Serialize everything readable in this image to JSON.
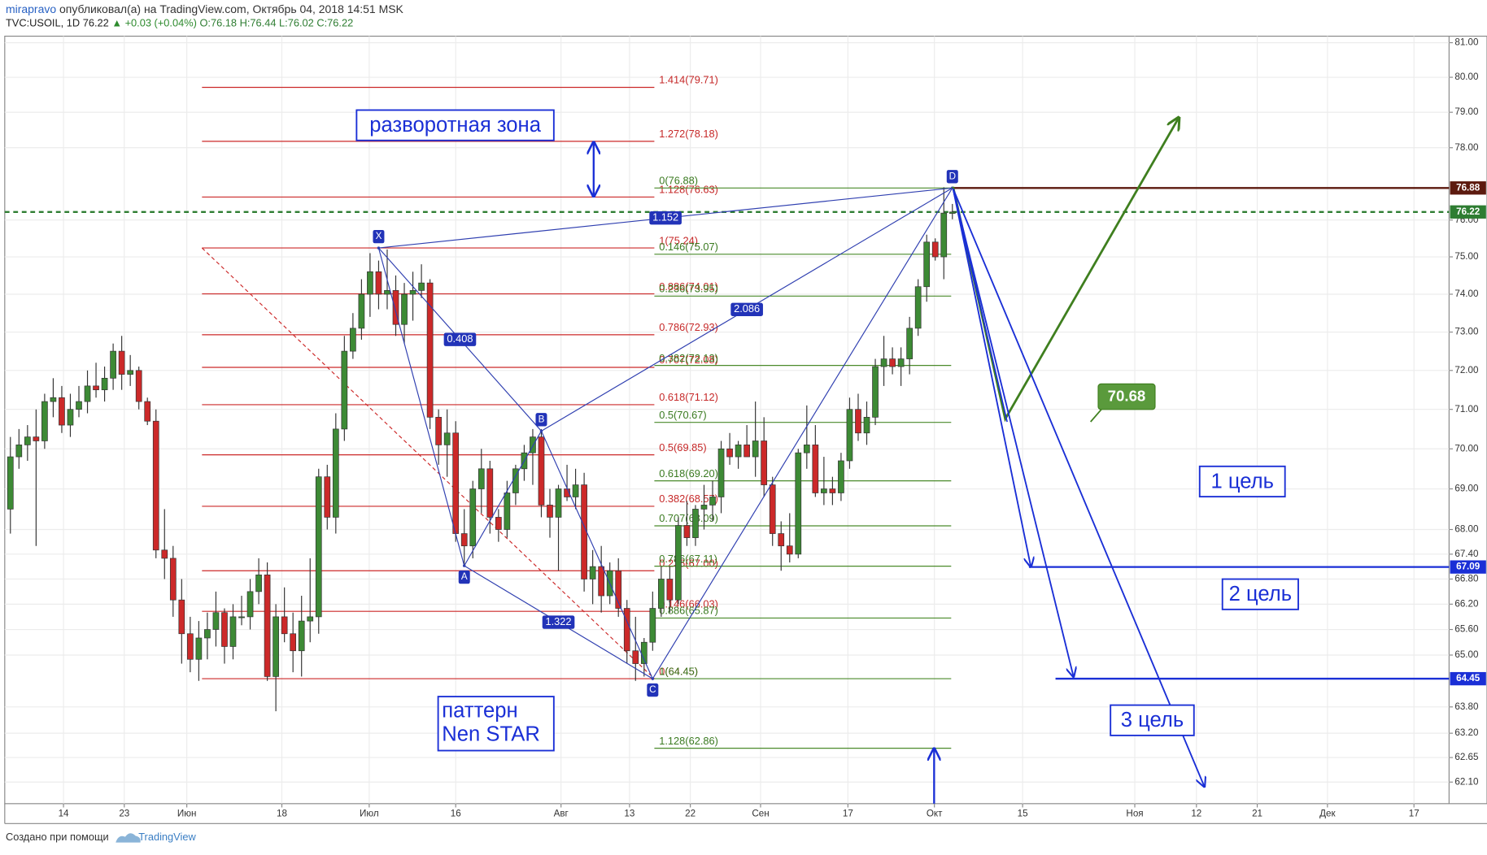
{
  "header": {
    "author": "mirapravo",
    "published": "опубликовал(а) на TradingView.com, Октябрь 04, 2018 14:51 MSK",
    "symbol": "TVC:USOIL, 1D",
    "price": "76.22",
    "change": "▲ +0.03 (+0.04%)",
    "ohlc": "O:76.18 H:76.44 L:76.02 C:76.22"
  },
  "chart_data": {
    "type": "candlestick",
    "log_scale": true,
    "grid": true,
    "up_color": "#3d8a35",
    "down_color": "#cc2929",
    "xlim": [
      -0.66,
      168.0
    ],
    "ylim": [
      61.62,
      81.19
    ],
    "xticks": [
      {
        "value": 6.2,
        "label": "14"
      },
      {
        "value": 13.3,
        "label": "23"
      },
      {
        "value": 20.6,
        "label": "Июн"
      },
      {
        "value": 31.7,
        "label": "18"
      },
      {
        "value": 41.9,
        "label": "Июл"
      },
      {
        "value": 52,
        "label": "16"
      },
      {
        "value": 64.3,
        "label": "Авг"
      },
      {
        "value": 72.3,
        "label": "13"
      },
      {
        "value": 79.4,
        "label": "22"
      },
      {
        "value": 87.6,
        "label": "Сен"
      },
      {
        "value": 97.8,
        "label": "17"
      },
      {
        "value": 107.9,
        "label": "Окт"
      },
      {
        "value": 118.2,
        "label": "15"
      },
      {
        "value": 131.3,
        "label": "Ноя"
      },
      {
        "value": 138.5,
        "label": "12"
      },
      {
        "value": 145.6,
        "label": "21"
      },
      {
        "value": 153.8,
        "label": "Дек"
      },
      {
        "value": 163.9,
        "label": "17"
      }
    ],
    "yticks": [
      {
        "value": 81,
        "label": "81.00"
      },
      {
        "value": 80,
        "label": "80.00"
      },
      {
        "value": 79,
        "label": "79.00"
      },
      {
        "value": 78,
        "label": "78.00"
      },
      {
        "value": 76,
        "label": "76.00"
      },
      {
        "value": 75,
        "label": "75.00"
      },
      {
        "value": 74,
        "label": "74.00"
      },
      {
        "value": 73,
        "label": "73.00"
      },
      {
        "value": 72,
        "label": "72.00"
      },
      {
        "value": 71,
        "label": "71.00"
      },
      {
        "value": 70,
        "label": "70.00"
      },
      {
        "value": 69,
        "label": "69.00"
      },
      {
        "value": 68,
        "label": "68.00"
      },
      {
        "value": 67.4,
        "label": "67.40"
      },
      {
        "value": 66.8,
        "label": "66.80"
      },
      {
        "value": 66.2,
        "label": "66.20"
      },
      {
        "value": 65.6,
        "label": "65.60"
      },
      {
        "value": 65,
        "label": "65.00"
      },
      {
        "value": 63.8,
        "label": "63.80"
      },
      {
        "value": 63.2,
        "label": "63.20"
      },
      {
        "value": 62.65,
        "label": "62.65"
      },
      {
        "value": 62.1,
        "label": "62.10"
      }
    ],
    "open": [
      68.5,
      69.8,
      70.1,
      70.3,
      70.2,
      71.2,
      71.3,
      70.6,
      71.0,
      71.2,
      71.6,
      71.5,
      71.8,
      72.5,
      71.9,
      72.0,
      71.2,
      70.7,
      67.5,
      67.3,
      66.3,
      65.5,
      64.9,
      65.4,
      65.6,
      66.0,
      65.2,
      65.9,
      65.9,
      66.5,
      66.9,
      64.5,
      65.9,
      65.5,
      65.1,
      65.8,
      65.9,
      69.3,
      68.3,
      70.5,
      72.5,
      73.1,
      74.0,
      74.6,
      74.0,
      74.1,
      73.2,
      74.0,
      74.1,
      74.3,
      70.8,
      70.1,
      70.4,
      67.9,
      67.6,
      69.0,
      69.5,
      68.3,
      68.0,
      68.9,
      69.5,
      69.9,
      70.3,
      68.6,
      68.3,
      69.0,
      68.8,
      69.1,
      66.8,
      67.1,
      66.4,
      67.0,
      66.1,
      65.1,
      64.8,
      65.3,
      66.1,
      66.8,
      66.3,
      68.1,
      67.8,
      68.5,
      68.6,
      68.8,
      70.0,
      69.8,
      70.1,
      69.8,
      70.2,
      69.1,
      67.9,
      67.6,
      67.4,
      69.9,
      70.1,
      68.9,
      69.0,
      68.9,
      69.7,
      71.0,
      70.4,
      70.8,
      72.1,
      72.3,
      72.1,
      72.3,
      73.1,
      74.2,
      75.4,
      75.0,
      76.18
    ],
    "high": [
      70.3,
      70.5,
      70.6,
      71.0,
      71.4,
      71.8,
      71.6,
      71.4,
      71.6,
      72.0,
      72.2,
      72.1,
      72.7,
      72.9,
      72.4,
      72.1,
      71.3,
      71.0,
      68.5,
      67.6,
      66.8,
      65.9,
      65.8,
      66.0,
      66.5,
      66.1,
      66.2,
      66.4,
      66.8,
      67.3,
      67.2,
      66.2,
      66.6,
      66.0,
      66.4,
      67.3,
      69.5,
      69.6,
      70.9,
      72.9,
      73.5,
      74.4,
      75.1,
      74.9,
      75.2,
      74.5,
      74.3,
      74.6,
      74.8,
      74.4,
      71.0,
      71.0,
      70.7,
      68.5,
      69.2,
      70.0,
      69.7,
      68.5,
      69.2,
      69.6,
      70.1,
      70.5,
      70.5,
      69.0,
      69.1,
      69.6,
      69.5,
      69.4,
      67.5,
      67.6,
      67.2,
      67.3,
      66.3,
      65.9,
      65.4,
      66.5,
      67.1,
      67.1,
      68.3,
      68.7,
      68.6,
      69.1,
      69.2,
      70.2,
      70.4,
      70.2,
      70.6,
      71.2,
      70.8,
      69.3,
      68.2,
      68.4,
      70.0,
      71.1,
      70.6,
      69.8,
      69.3,
      69.9,
      71.3,
      71.4,
      71.2,
      72.3,
      72.9,
      72.6,
      72.6,
      73.4,
      74.4,
      75.6,
      75.5,
      76.9,
      76.44
    ],
    "low": [
      67.9,
      69.5,
      69.7,
      67.6,
      70.0,
      70.8,
      70.4,
      70.3,
      70.8,
      70.9,
      71.3,
      71.2,
      71.5,
      71.5,
      71.6,
      71.0,
      70.6,
      67.3,
      66.8,
      65.9,
      64.8,
      64.6,
      64.4,
      64.9,
      65.2,
      64.8,
      64.9,
      65.7,
      65.6,
      66.2,
      64.4,
      63.7,
      65.3,
      64.6,
      64.5,
      65.3,
      65.5,
      68.0,
      67.9,
      70.2,
      72.3,
      72.8,
      73.4,
      73.6,
      73.6,
      72.9,
      72.7,
      73.3,
      73.9,
      70.5,
      69.6,
      69.3,
      67.7,
      67.1,
      67.3,
      68.4,
      67.9,
      67.7,
      67.8,
      68.6,
      69.2,
      69.1,
      68.3,
      67.8,
      67.0,
      68.7,
      68.5,
      66.5,
      66.2,
      66.0,
      66.2,
      65.9,
      64.8,
      64.4,
      64.5,
      65.1,
      65.9,
      66.0,
      66.2,
      67.6,
      67.6,
      68.0,
      68.2,
      68.4,
      69.6,
      69.5,
      69.8,
      69.3,
      68.8,
      67.6,
      67.0,
      67.2,
      67.3,
      69.5,
      68.8,
      68.6,
      68.6,
      68.7,
      69.5,
      70.2,
      70.1,
      70.6,
      71.6,
      71.9,
      71.6,
      71.9,
      72.9,
      73.8,
      74.9,
      74.4,
      76.02
    ],
    "close": [
      69.8,
      70.1,
      70.3,
      70.2,
      71.2,
      71.3,
      70.6,
      71.0,
      71.2,
      71.6,
      71.5,
      71.8,
      72.5,
      71.9,
      72.0,
      71.2,
      70.7,
      67.5,
      67.3,
      66.3,
      65.5,
      64.9,
      65.4,
      65.6,
      66.0,
      65.2,
      65.9,
      65.9,
      66.5,
      66.9,
      64.5,
      65.9,
      65.5,
      65.1,
      65.8,
      65.9,
      69.3,
      68.3,
      70.5,
      72.5,
      73.1,
      74.0,
      74.6,
      74.0,
      74.1,
      73.2,
      74.0,
      74.1,
      74.3,
      70.8,
      70.1,
      70.4,
      67.9,
      67.6,
      69.0,
      69.5,
      68.3,
      68.0,
      68.9,
      69.5,
      69.9,
      70.3,
      68.6,
      68.3,
      69.0,
      68.8,
      69.1,
      66.8,
      67.1,
      66.4,
      67.0,
      66.1,
      65.1,
      64.8,
      65.3,
      66.1,
      66.8,
      66.3,
      68.1,
      67.8,
      68.5,
      68.6,
      68.8,
      70.0,
      69.8,
      70.1,
      69.8,
      70.2,
      69.1,
      67.9,
      67.6,
      67.4,
      69.9,
      70.1,
      68.9,
      69.0,
      68.9,
      69.7,
      71.0,
      70.4,
      70.8,
      72.1,
      72.3,
      72.1,
      72.3,
      73.1,
      74.2,
      75.4,
      75.0,
      76.19,
      76.22
    ],
    "fib_red": {
      "color": "#cc2929",
      "levels": [
        {
          "label": "1.414(79.71)",
          "value": 79.71
        },
        {
          "label": "1.272(78.18)",
          "value": 78.18
        },
        {
          "label": "1.128(76.63)",
          "value": 76.63
        },
        {
          "label": "1(75.24)",
          "value": 75.24
        },
        {
          "label": "0.886(74.01)",
          "value": 74.01
        },
        {
          "label": "0.786(72.93)",
          "value": 72.93
        },
        {
          "label": "0.707(72.08)",
          "value": 72.08
        },
        {
          "label": "0.618(71.12)",
          "value": 71.12
        },
        {
          "label": "0.5(69.85)",
          "value": 69.85
        },
        {
          "label": "0.382(68.57)",
          "value": 68.57
        },
        {
          "label": "0.236(67.00)",
          "value": 67.0
        },
        {
          "label": "0.146(66.03)",
          "value": 66.03
        },
        {
          "label": "0(64.45)",
          "value": 64.45
        }
      ]
    },
    "fib_green": {
      "color": "#4a8a2a",
      "levels": [
        {
          "label": "0(76.88)",
          "value": 76.88
        },
        {
          "label": "0.146(75.07)",
          "value": 75.07
        },
        {
          "label": "0.236(73.95)",
          "value": 73.95
        },
        {
          "label": "0.382(72.13)",
          "value": 72.13
        },
        {
          "label": "0.5(70.67)",
          "value": 70.67
        },
        {
          "label": "0.618(69.20)",
          "value": 69.2
        },
        {
          "label": "0.707(68.09)",
          "value": 68.09
        },
        {
          "label": "0.786(67.11)",
          "value": 67.11
        },
        {
          "label": "0.886(65.87)",
          "value": 65.87
        },
        {
          "label": "1(64.45)",
          "value": 64.45
        },
        {
          "label": "1.128(62.86)",
          "value": 62.86
        }
      ]
    },
    "pattern": {
      "color": "#2f3fb0",
      "points": [
        {
          "label": "X",
          "bar": 43,
          "price": 75.24
        },
        {
          "label": "A",
          "bar": 53,
          "price": 67.12
        },
        {
          "label": "B",
          "bar": 62,
          "price": 70.45
        },
        {
          "label": "C",
          "bar": 75,
          "price": 64.45
        },
        {
          "label": "D",
          "bar": 110,
          "price": 76.88
        }
      ],
      "ratios": [
        {
          "value": 1.152,
          "between": [
            "X",
            "D"
          ]
        },
        {
          "value": 0.408,
          "between": [
            "X",
            "B"
          ]
        },
        {
          "value": 2.086,
          "between": [
            "B",
            "D"
          ]
        },
        {
          "value": 1.322,
          "between": [
            "A",
            "C"
          ]
        }
      ]
    },
    "horizontal_lines": [
      {
        "value": 76.88,
        "color": "#5c1a0e"
      },
      {
        "value": 76.22,
        "color": "#2e7d32",
        "dashed": true
      },
      {
        "value": 67.09,
        "color": "#1a2fd6"
      },
      {
        "value": 64.45,
        "color": "#1a2fd6"
      }
    ],
    "annotations": {
      "reversal_zone": "разворотная зона",
      "pattern_name": [
        "паттерн",
        "Nen STAR"
      ],
      "targets": [
        "1 цель",
        "2 цель",
        "3 цель"
      ],
      "target_price": 70.68
    }
  },
  "footer": {
    "created": "Создано при помощи",
    "brand": "TradingView"
  }
}
